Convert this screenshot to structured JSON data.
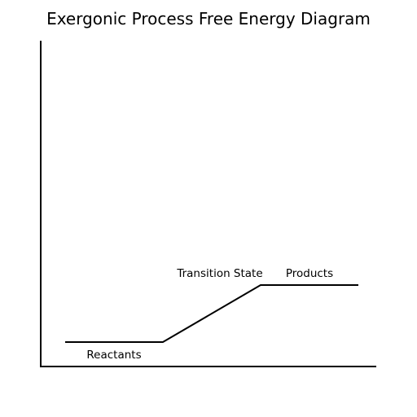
{
  "title": "Exergonic Process Free Energy Diagram",
  "labels": {
    "reactants": "Reactants",
    "transition_state": "Transition State",
    "products": "Products"
  },
  "colors": {
    "line": "#000000",
    "background": "#ffffff"
  }
}
